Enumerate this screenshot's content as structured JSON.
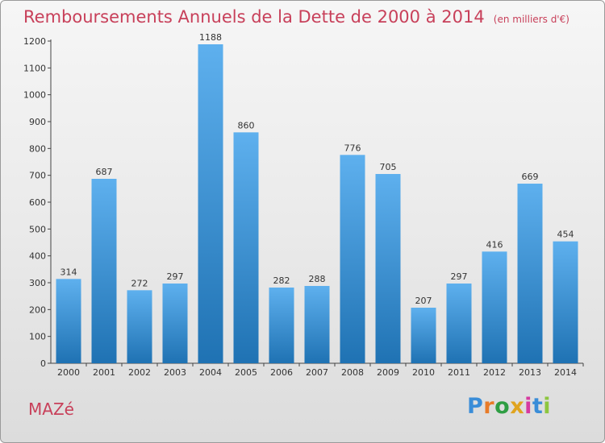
{
  "header": {
    "title": "Remboursements Annuels de la Dette de 2000 à 2014",
    "unit": "(en milliers d'€)"
  },
  "footer": {
    "town": "MAZé",
    "logo_letters": [
      "P",
      "r",
      "o",
      "x",
      "i",
      "t",
      "i"
    ],
    "logo_colors": [
      "#3a8dd8",
      "#e87b28",
      "#2f9e44",
      "#e0a41f",
      "#d63aa0",
      "#3a8dd8",
      "#8dc63f"
    ]
  },
  "colors": {
    "bar_top": "#5eb0ee",
    "bar_bottom": "#1f72b3",
    "title": "#c8405a"
  },
  "chart_data": {
    "type": "bar",
    "categories": [
      "2000",
      "2001",
      "2002",
      "2003",
      "2004",
      "2005",
      "2006",
      "2007",
      "2008",
      "2009",
      "2010",
      "2011",
      "2012",
      "2013",
      "2014"
    ],
    "values": [
      314,
      687,
      272,
      297,
      1188,
      860,
      282,
      288,
      776,
      705,
      207,
      297,
      416,
      669,
      454
    ],
    "title": "Remboursements Annuels de la Dette de 2000 à 2014",
    "xlabel": "",
    "ylabel": "",
    "ylim": [
      0,
      1200
    ],
    "yticks": [
      0,
      100,
      200,
      300,
      400,
      500,
      600,
      700,
      800,
      900,
      1000,
      1100,
      1200
    ],
    "grid": false,
    "data_labels": true
  }
}
